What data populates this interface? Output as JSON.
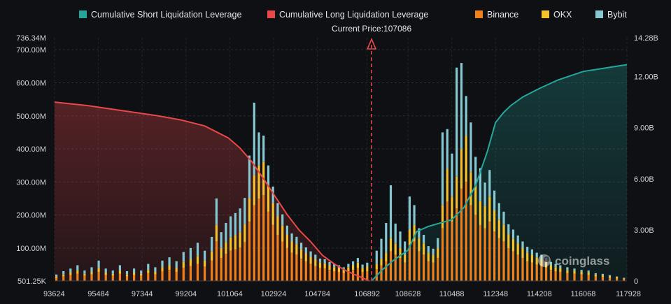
{
  "chart_data": {
    "type": "bar",
    "legend_position": "top-center",
    "grid": true,
    "legend": [
      {
        "key": "short",
        "label": "Cumulative Short Liquidation Leverage",
        "color": "#26a69a"
      },
      {
        "key": "long",
        "label": "Cumulative Long Liquidation Leverage",
        "color": "#e84848"
      },
      {
        "key": "binance",
        "label": "Binance",
        "color": "#f0801a"
      },
      {
        "key": "okx",
        "label": "OKX",
        "color": "#f5c22b"
      },
      {
        "key": "bybit",
        "label": "Bybit",
        "color": "#86c8d2"
      }
    ],
    "current_price_label": "Current Price:107086",
    "current_price": 107086,
    "x_ticks": [
      "93624",
      "95484",
      "97344",
      "99204",
      "101064",
      "102924",
      "104784",
      "106892",
      "108628",
      "110488",
      "112348",
      "114208",
      "116068",
      "117928"
    ],
    "xlim": [
      93624,
      117928
    ],
    "y_left_ticks": [
      {
        "label": "736.34M",
        "value": 736.34
      },
      {
        "label": "700.00M",
        "value": 700
      },
      {
        "label": "600.00M",
        "value": 600
      },
      {
        "label": "500.00M",
        "value": 500
      },
      {
        "label": "400.00M",
        "value": 400
      },
      {
        "label": "300.00M",
        "value": 300
      },
      {
        "label": "200.00M",
        "value": 200
      },
      {
        "label": "100.00M",
        "value": 100
      },
      {
        "label": "501.25K",
        "value": 0.50125
      }
    ],
    "y_left_range": [
      0.50125,
      736.34
    ],
    "y_right_ticks": [
      {
        "label": "14.28B",
        "value": 14.28
      },
      {
        "label": "12.00B",
        "value": 12
      },
      {
        "label": "9.00B",
        "value": 9
      },
      {
        "label": "6.00B",
        "value": 6
      },
      {
        "label": "3.00B",
        "value": 3
      },
      {
        "label": "0",
        "value": 0
      }
    ],
    "y_right_range": [
      0,
      14.28
    ],
    "long_cumulative": {
      "x": [
        93624,
        95000,
        96000,
        97000,
        98000,
        99000,
        100000,
        101000,
        101500,
        102000,
        102500,
        102924,
        103500,
        104000,
        104500,
        105000,
        105500,
        106000,
        106500,
        107000
      ],
      "y": [
        10.5,
        10.3,
        10.1,
        9.9,
        9.7,
        9.45,
        9.1,
        8.4,
        7.8,
        7.0,
        6.0,
        5.1,
        3.9,
        3.0,
        2.3,
        1.5,
        1.0,
        0.6,
        0.3,
        0
      ]
    },
    "short_cumulative": {
      "x": [
        107086,
        107500,
        108000,
        108628,
        109000,
        109500,
        110000,
        110488,
        111000,
        111500,
        112000,
        112348,
        112700,
        113000,
        113500,
        114208,
        115000,
        116068,
        117000,
        117928
      ],
      "y": [
        0,
        0.6,
        1.2,
        1.8,
        2.9,
        3.2,
        3.4,
        3.6,
        4.3,
        5.6,
        7.6,
        9.3,
        9.9,
        10.3,
        10.8,
        11.3,
        11.8,
        12.3,
        12.5,
        12.7
      ]
    },
    "bars": {
      "x": [
        93700,
        94000,
        94300,
        94600,
        94900,
        95200,
        95500,
        95800,
        96100,
        96400,
        96700,
        97000,
        97300,
        97600,
        97900,
        98200,
        98500,
        98800,
        99100,
        99400,
        99700,
        100000,
        100300,
        100500,
        100700,
        100900,
        101100,
        101300,
        101500,
        101700,
        101900,
        102100,
        102300,
        102500,
        102700,
        102900,
        103100,
        103300,
        103500,
        103700,
        103900,
        104100,
        104300,
        104500,
        104700,
        104900,
        105100,
        105300,
        105500,
        105700,
        105900,
        106100,
        106300,
        106500,
        106700,
        106900,
        107300,
        107500,
        107700,
        107900,
        108100,
        108300,
        108500,
        108700,
        108900,
        109100,
        109300,
        109500,
        109700,
        109900,
        110100,
        110300,
        110500,
        110700,
        110900,
        111100,
        111300,
        111500,
        111700,
        111900,
        112100,
        112300,
        112500,
        112700,
        112900,
        113100,
        113300,
        113500,
        113700,
        113900,
        114100,
        114300,
        114500,
        114700,
        114900,
        115100,
        115400,
        115700,
        116000,
        116300,
        116600,
        116900,
        117200,
        117500,
        117800
      ],
      "binance": [
        10,
        14,
        18,
        22,
        16,
        20,
        28,
        18,
        16,
        22,
        14,
        18,
        16,
        24,
        20,
        30,
        34,
        28,
        40,
        46,
        52,
        44,
        62,
        120,
        70,
        82,
        92,
        96,
        102,
        118,
        180,
        230,
        250,
        260,
        210,
        170,
        140,
        120,
        100,
        86,
        80,
        68,
        60,
        52,
        46,
        40,
        38,
        34,
        30,
        28,
        24,
        30,
        34,
        40,
        28,
        30,
        36,
        48,
        60,
        90,
        80,
        70,
        56,
        110,
        120,
        90,
        80,
        60,
        56,
        70,
        160,
        240,
        180,
        220,
        280,
        300,
        230,
        200,
        170,
        160,
        180,
        150,
        130,
        120,
        100,
        90,
        80,
        70,
        60,
        56,
        50,
        46,
        40,
        34,
        30,
        28,
        24,
        22,
        20,
        18,
        14,
        12,
        10,
        8,
        6
      ],
      "okx": [
        4,
        6,
        8,
        10,
        6,
        8,
        12,
        8,
        6,
        10,
        6,
        8,
        6,
        10,
        8,
        12,
        14,
        12,
        18,
        20,
        24,
        18,
        28,
        50,
        30,
        36,
        40,
        42,
        46,
        54,
        70,
        90,
        100,
        100,
        80,
        66,
        56,
        48,
        40,
        34,
        32,
        28,
        24,
        22,
        20,
        16,
        16,
        14,
        12,
        12,
        10,
        12,
        14,
        16,
        12,
        14,
        16,
        20,
        26,
        40,
        34,
        30,
        24,
        46,
        50,
        40,
        34,
        26,
        24,
        30,
        70,
        100,
        76,
        96,
        120,
        140,
        100,
        86,
        72,
        68,
        76,
        64,
        56,
        50,
        42,
        38,
        34,
        30,
        26,
        24,
        22,
        20,
        18,
        14,
        12,
        12,
        10,
        10,
        8,
        8,
        6,
        6,
        4,
        4,
        2
      ],
      "bybit": [
        6,
        10,
        12,
        16,
        10,
        14,
        22,
        12,
        10,
        16,
        10,
        12,
        10,
        18,
        14,
        20,
        24,
        20,
        30,
        34,
        40,
        30,
        44,
        80,
        48,
        58,
        64,
        68,
        72,
        80,
        130,
        220,
        100,
        80,
        60,
        50,
        40,
        34,
        28,
        24,
        22,
        20,
        18,
        16,
        14,
        12,
        12,
        10,
        10,
        8,
        8,
        10,
        12,
        14,
        10,
        12,
        40,
        60,
        90,
        160,
        60,
        50,
        40,
        100,
        60,
        30,
        26,
        20,
        18,
        30,
        220,
        120,
        130,
        330,
        260,
        120,
        150,
        90,
        100,
        70,
        80,
        60,
        50,
        40,
        30,
        28,
        24,
        20,
        18,
        16,
        14,
        14,
        12,
        10,
        10,
        8,
        8,
        6,
        6,
        6,
        4,
        4,
        4,
        2,
        2
      ]
    }
  },
  "watermark": {
    "text": "coinglass",
    "icon": "coinglass-logo-icon"
  }
}
